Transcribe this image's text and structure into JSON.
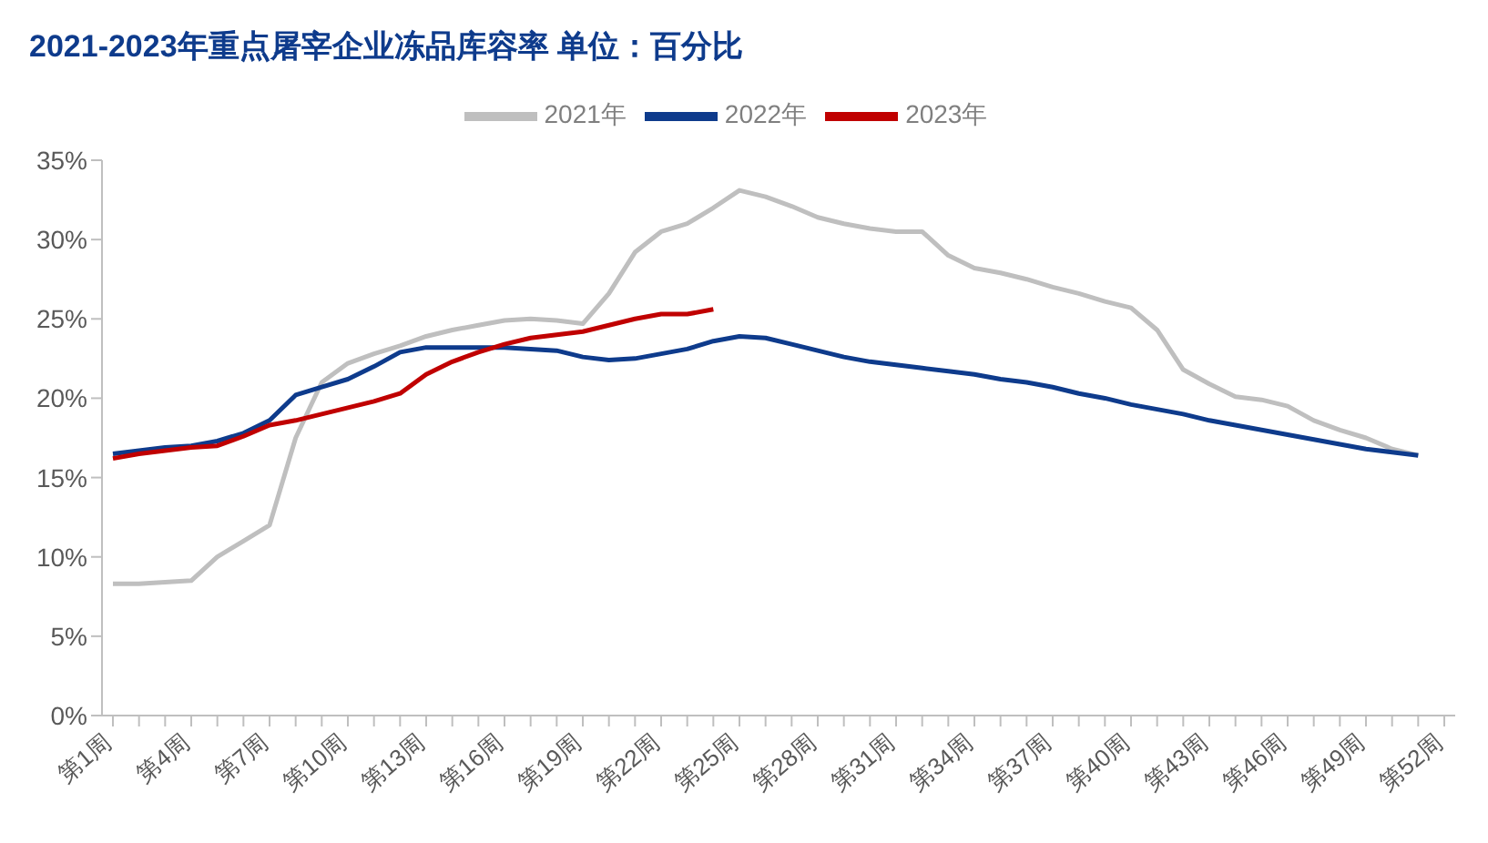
{
  "chart_data": {
    "type": "line",
    "title": "2021-2023年重点屠宰企业冻品库容率 单位：百分比",
    "categories": [
      "第1周",
      null,
      null,
      "第4周",
      null,
      null,
      "第7周",
      null,
      null,
      "第10周",
      null,
      null,
      "第13周",
      null,
      null,
      "第16周",
      null,
      null,
      "第19周",
      null,
      null,
      "第22周",
      null,
      null,
      "第25周",
      null,
      null,
      "第28周",
      null,
      null,
      "第31周",
      null,
      null,
      "第34周",
      null,
      null,
      "第37周",
      null,
      null,
      "第40周",
      null,
      null,
      "第43周",
      null,
      null,
      "第46周",
      null,
      null,
      "第49周",
      null,
      null,
      "第52周"
    ],
    "series": [
      {
        "name": "2021年",
        "color": "#bfbfbf",
        "values": [
          8.3,
          8.3,
          8.4,
          8.5,
          10.0,
          11.0,
          12.0,
          17.5,
          21.0,
          22.2,
          22.8,
          23.3,
          23.9,
          24.3,
          24.6,
          24.9,
          25.0,
          24.9,
          24.7,
          26.6,
          29.2,
          30.5,
          31.0,
          32.0,
          33.1,
          32.7,
          32.1,
          31.4,
          31.0,
          30.7,
          30.5,
          30.5,
          29.0,
          28.2,
          27.9,
          27.5,
          27.0,
          26.6,
          26.1,
          25.7,
          24.3,
          21.8,
          20.9,
          20.1,
          19.9,
          19.5,
          18.6,
          18.0,
          17.5,
          16.8,
          16.4,
          null
        ]
      },
      {
        "name": "2022年",
        "color": "#0e3b8c",
        "values": [
          16.5,
          16.7,
          16.9,
          17.0,
          17.3,
          17.8,
          18.6,
          20.2,
          20.7,
          21.2,
          22.0,
          22.9,
          23.2,
          23.2,
          23.2,
          23.2,
          23.1,
          23.0,
          22.6,
          22.4,
          22.5,
          22.8,
          23.1,
          23.6,
          23.9,
          23.8,
          23.4,
          23.0,
          22.6,
          22.3,
          22.1,
          21.9,
          21.7,
          21.5,
          21.2,
          21.0,
          20.7,
          20.3,
          20.0,
          19.6,
          19.3,
          19.0,
          18.6,
          18.3,
          18.0,
          17.7,
          17.4,
          17.1,
          16.8,
          16.6,
          16.4,
          null
        ]
      },
      {
        "name": "2023年",
        "color": "#c00000",
        "values": [
          16.2,
          16.5,
          16.7,
          16.9,
          17.0,
          17.6,
          18.3,
          18.6,
          19.0,
          19.4,
          19.8,
          20.3,
          21.5,
          22.3,
          22.9,
          23.4,
          23.8,
          24.0,
          24.2,
          24.6,
          25.0,
          25.3,
          25.3,
          25.6,
          null,
          null,
          null,
          null,
          null,
          null,
          null,
          null,
          null,
          null,
          null,
          null,
          null,
          null,
          null,
          null,
          null,
          null,
          null,
          null,
          null,
          null,
          null,
          null,
          null,
          null,
          null,
          null
        ]
      }
    ],
    "ylim": [
      0,
      35
    ],
    "yticks": [
      {
        "value": 0,
        "label": "0%"
      },
      {
        "value": 5,
        "label": "5%"
      },
      {
        "value": 10,
        "label": "10%"
      },
      {
        "value": 15,
        "label": "15%"
      },
      {
        "value": 20,
        "label": "20%"
      },
      {
        "value": 25,
        "label": "25%"
      },
      {
        "value": 30,
        "label": "30%"
      },
      {
        "value": 35,
        "label": "35%"
      }
    ],
    "grid": false,
    "legend": "top",
    "marker": "none",
    "line_style": "solid"
  }
}
